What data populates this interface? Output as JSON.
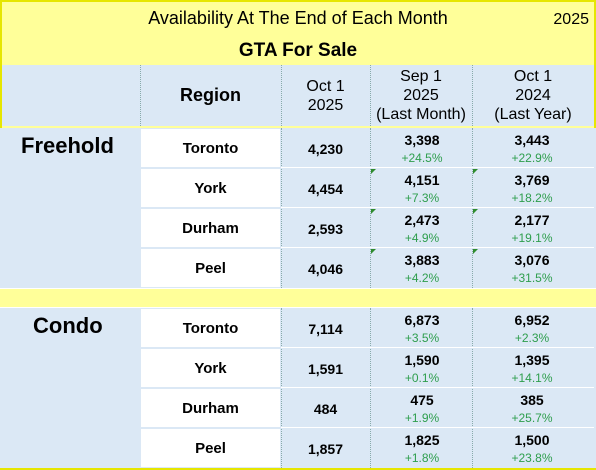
{
  "header": {
    "title": "Availability At The End of Each Month",
    "year": "2025",
    "subtitle": "GTA For Sale"
  },
  "columns": {
    "region": "Region",
    "current": [
      "Oct 1",
      "2025"
    ],
    "last_month": [
      "Sep 1",
      "2025",
      "(Last Month)"
    ],
    "last_year": [
      "Oct 1",
      "2024",
      "(Last Year)"
    ]
  },
  "groups": [
    {
      "label": "Freehold",
      "rows": [
        {
          "region": "Toronto",
          "current": "4,230",
          "last_month": "3,398",
          "last_month_change": "+24.5%",
          "last_year": "3,443",
          "last_year_change": "+22.9%"
        },
        {
          "region": "York",
          "current": "4,454",
          "last_month": "4,151",
          "last_month_change": "+7.3%",
          "last_year": "3,769",
          "last_year_change": "+18.2%"
        },
        {
          "region": "Durham",
          "current": "2,593",
          "last_month": "2,473",
          "last_month_change": "+4.9%",
          "last_year": "2,177",
          "last_year_change": "+19.1%"
        },
        {
          "region": "Peel",
          "current": "4,046",
          "last_month": "3,883",
          "last_month_change": "+4.2%",
          "last_year": "3,076",
          "last_year_change": "+31.5%"
        }
      ]
    },
    {
      "label": "Condo",
      "rows": [
        {
          "region": "Toronto",
          "current": "7,114",
          "last_month": "6,873",
          "last_month_change": "+3.5%",
          "last_year": "6,952",
          "last_year_change": "+2.3%"
        },
        {
          "region": "York",
          "current": "1,591",
          "last_month": "1,590",
          "last_month_change": "+0.1%",
          "last_year": "1,395",
          "last_year_change": "+14.1%"
        },
        {
          "region": "Durham",
          "current": "484",
          "last_month": "475",
          "last_month_change": "+1.9%",
          "last_year": "385",
          "last_year_change": "+25.7%"
        },
        {
          "region": "Peel",
          "current": "1,857",
          "last_month": "1,825",
          "last_month_change": "+1.8%",
          "last_year": "1,500",
          "last_year_change": "+23.8%"
        }
      ]
    }
  ],
  "colors": {
    "background": "#ffff99",
    "header_band": "#dbe8f5",
    "change_text": "#2e9e4d"
  }
}
